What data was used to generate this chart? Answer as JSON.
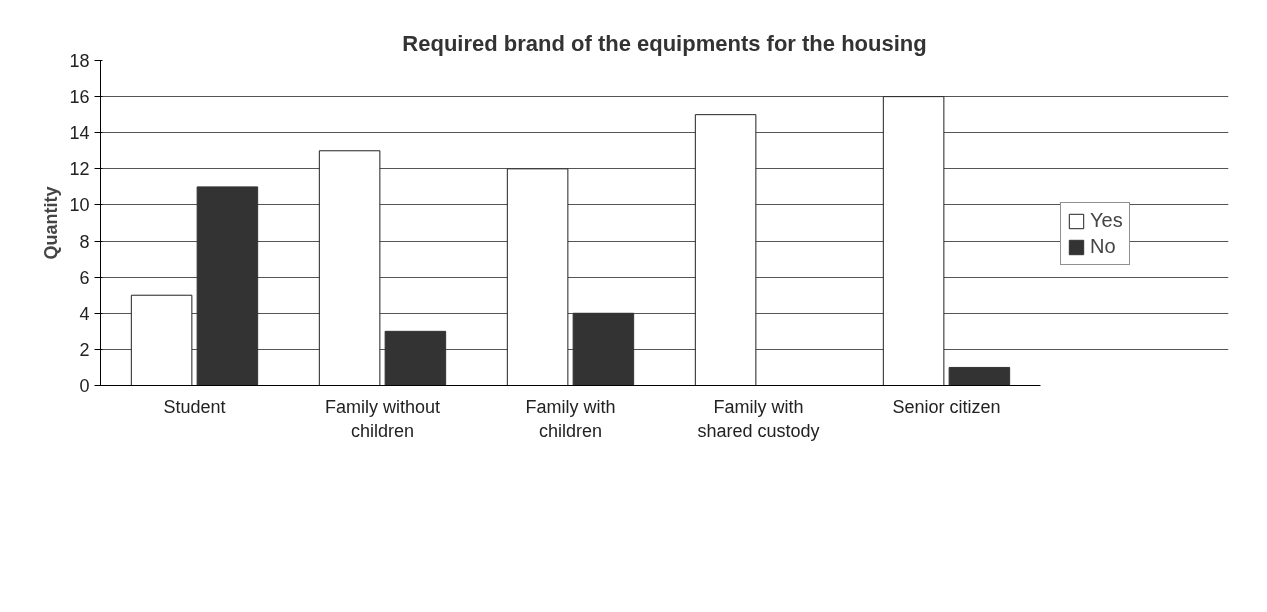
{
  "chart_data": {
    "type": "bar",
    "title": "Required brand of the equipments for the housing",
    "ylabel": "Quantity",
    "categories": [
      "Student",
      "Family without children",
      "Family with children",
      "Family with shared custody",
      "Senior citizen"
    ],
    "series": [
      {
        "name": "Yes",
        "color": "#ffffff",
        "values": [
          5,
          13,
          12,
          15,
          16
        ]
      },
      {
        "name": "No",
        "color": "#333333",
        "values": [
          11,
          3,
          4,
          0,
          1
        ]
      }
    ],
    "ylim": [
      0,
      18
    ],
    "yticks": [
      0,
      2,
      4,
      6,
      8,
      10,
      12,
      14,
      16,
      18
    ],
    "grid": "y",
    "legend": "right"
  }
}
